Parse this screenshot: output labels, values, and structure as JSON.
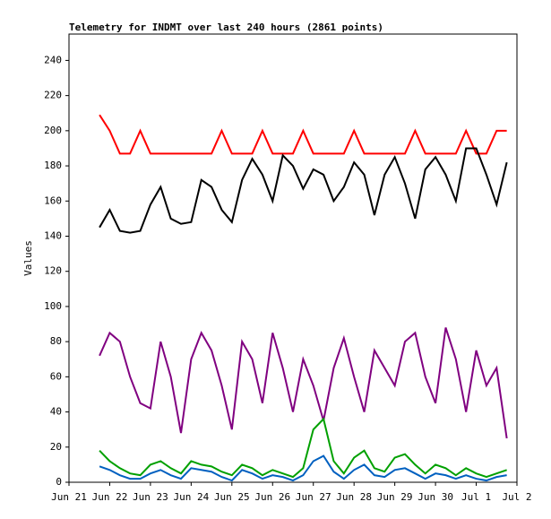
{
  "chart_data": {
    "type": "line",
    "title": "Telemetry for INDMT over last 240 hours (2861 points)",
    "y_label": "Values",
    "x": [
      0.75,
      1,
      1.25,
      1.5,
      1.75,
      2,
      2.25,
      2.5,
      2.75,
      3,
      3.25,
      3.5,
      3.75,
      4,
      4.25,
      4.5,
      4.75,
      5,
      5.25,
      5.5,
      5.75,
      6,
      6.25,
      6.5,
      6.75,
      7,
      7.25,
      7.5,
      7.75,
      8,
      8.25,
      8.5,
      8.75,
      9,
      9.25,
      9.5,
      9.75,
      10,
      10.25,
      10.5,
      10.75
    ],
    "series": [
      {
        "color": "#ff0000",
        "values": [
          209,
          200,
          187,
          187,
          200,
          187,
          187,
          187,
          187,
          187,
          187,
          187,
          200,
          187,
          187,
          187,
          200,
          187,
          187,
          187,
          200,
          187,
          187,
          187,
          187,
          200,
          187,
          187,
          187,
          187,
          187,
          200,
          187,
          187,
          187,
          187,
          200,
          187,
          187,
          200,
          200
        ]
      },
      {
        "color": "#000000",
        "values": [
          145,
          155,
          143,
          142,
          143,
          158,
          168,
          150,
          147,
          148,
          172,
          168,
          155,
          148,
          172,
          184,
          175,
          160,
          186,
          180,
          167,
          178,
          175,
          160,
          168,
          182,
          175,
          152,
          175,
          185,
          170,
          150,
          178,
          185,
          175,
          160,
          190,
          190,
          175,
          158,
          182
        ]
      },
      {
        "color": "#800080",
        "values": [
          72,
          85,
          80,
          60,
          45,
          42,
          80,
          60,
          28,
          70,
          85,
          75,
          55,
          30,
          80,
          70,
          45,
          85,
          65,
          40,
          70,
          55,
          35,
          65,
          82,
          60,
          40,
          75,
          65,
          55,
          80,
          85,
          60,
          45,
          88,
          70,
          40,
          75,
          55,
          65,
          25
        ]
      },
      {
        "color": "#00a000",
        "values": [
          18,
          12,
          8,
          5,
          4,
          10,
          12,
          8,
          5,
          12,
          10,
          9,
          6,
          4,
          10,
          8,
          4,
          7,
          5,
          3,
          8,
          30,
          36,
          12,
          5,
          14,
          18,
          8,
          6,
          14,
          16,
          10,
          5,
          10,
          8,
          4,
          8,
          5,
          3,
          5,
          7
        ]
      },
      {
        "color": "#0060c0",
        "values": [
          9,
          7,
          4,
          2,
          2,
          5,
          7,
          4,
          2,
          8,
          7,
          6,
          3,
          1,
          7,
          5,
          2,
          4,
          3,
          1,
          4,
          12,
          15,
          6,
          2,
          7,
          10,
          4,
          3,
          7,
          8,
          5,
          2,
          5,
          4,
          2,
          4,
          2,
          1,
          3,
          4
        ]
      }
    ],
    "xlim": [
      0,
      11
    ],
    "xticks": [
      {
        "value": 0,
        "label": "Jun 21"
      },
      {
        "value": 1,
        "label": "Jun 22"
      },
      {
        "value": 2,
        "label": "Jun 23"
      },
      {
        "value": 3,
        "label": "Jun 24"
      },
      {
        "value": 4,
        "label": "Jun 25"
      },
      {
        "value": 5,
        "label": "Jun 26"
      },
      {
        "value": 6,
        "label": "Jun 27"
      },
      {
        "value": 7,
        "label": "Jun 28"
      },
      {
        "value": 8,
        "label": "Jun 29"
      },
      {
        "value": 9,
        "label": "Jun 30"
      },
      {
        "value": 10,
        "label": "Jul 1"
      },
      {
        "value": 11,
        "label": "Jul 2"
      }
    ],
    "ylim": [
      0,
      255
    ],
    "yticks": [
      0,
      20,
      40,
      60,
      80,
      100,
      120,
      140,
      160,
      180,
      200,
      220,
      240
    ],
    "grid": false
  }
}
